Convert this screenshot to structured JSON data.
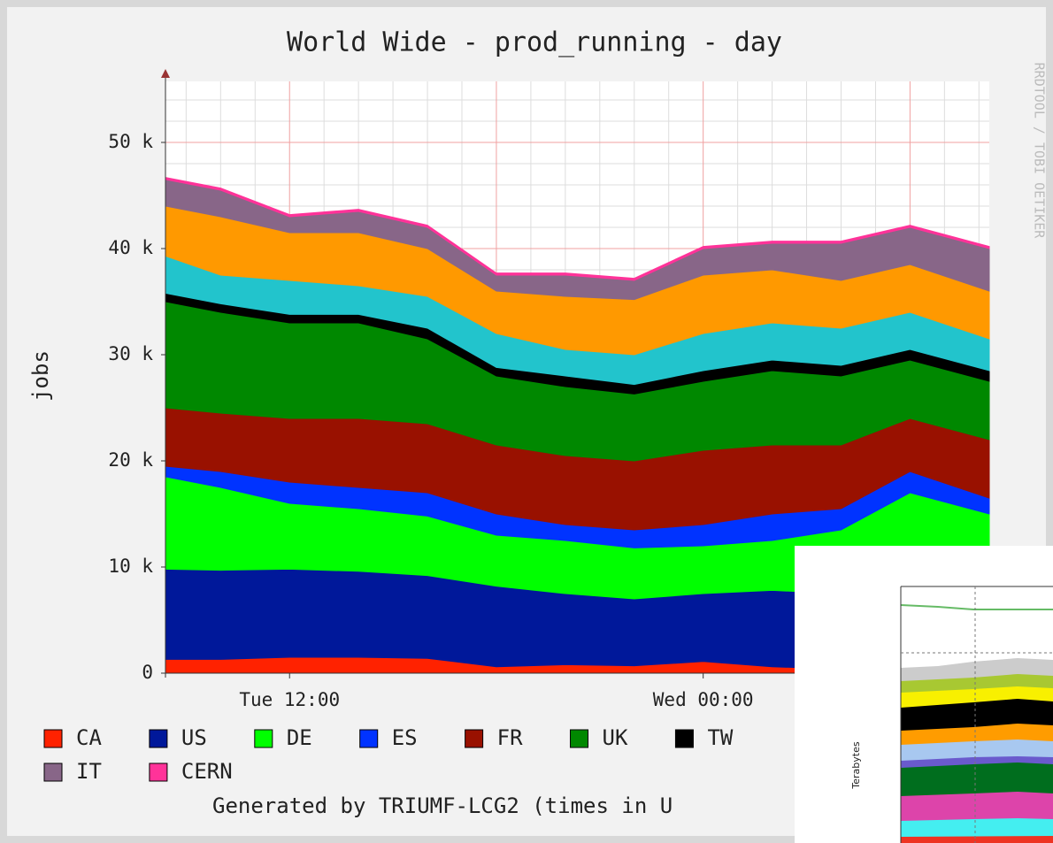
{
  "chart_data": {
    "type": "stacked_area",
    "title": "World Wide - prod_running - day",
    "y_label": "jobs",
    "side_note": "RRDTOOL / TOBI OETIKER",
    "footer": "Generated by TRIUMF-LCG2 (times in U",
    "x": [
      8.4,
      10,
      12,
      14,
      16,
      18,
      20,
      22,
      24,
      26,
      28,
      30,
      32.3
    ],
    "xlim": [
      8.4,
      32.3
    ],
    "xticks": [
      {
        "value": 12,
        "label": "Tue 12:00"
      },
      {
        "value": 24,
        "label": "Wed 00:00"
      }
    ],
    "x_major_grid": [
      12,
      18,
      24,
      30
    ],
    "x_minor_grid": [
      9,
      10,
      11,
      13,
      14,
      15,
      16,
      17,
      19,
      20,
      21,
      22,
      23,
      25,
      26,
      27,
      28,
      29,
      31,
      32
    ],
    "ylim": [
      0,
      55750
    ],
    "yticks": [
      {
        "value": 0,
        "label": "0"
      },
      {
        "value": 10000,
        "label": "10 k"
      },
      {
        "value": 20000,
        "label": "20 k"
      },
      {
        "value": 30000,
        "label": "30 k"
      },
      {
        "value": 40000,
        "label": "40 k"
      },
      {
        "value": 50000,
        "label": "50 k"
      }
    ],
    "y_minor_grid": [
      2000,
      4000,
      6000,
      8000,
      12000,
      14000,
      16000,
      18000,
      22000,
      24000,
      26000,
      28000,
      32000,
      34000,
      36000,
      38000,
      42000,
      44000,
      46000,
      48000,
      52000,
      54000
    ],
    "grid": true,
    "series": [
      {
        "name": "CA",
        "color": "#ff2200",
        "values": [
          1300,
          1300,
          1500,
          1500,
          1400,
          600,
          800,
          700,
          1100,
          600,
          400,
          300,
          300
        ]
      },
      {
        "name": "US",
        "color": "#00189a",
        "values": [
          8500,
          8400,
          8300,
          8100,
          7800,
          7600,
          6700,
          6300,
          6400,
          7200,
          7100,
          7300,
          7200
        ]
      },
      {
        "name": "DE",
        "color": "#00ff00",
        "values": [
          8700,
          7800,
          6200,
          5900,
          5600,
          4800,
          5000,
          4800,
          4500,
          4700,
          6000,
          9400,
          7500
        ]
      },
      {
        "name": "ES",
        "color": "#0033ff",
        "values": [
          1000,
          1500,
          2000,
          2000,
          2200,
          2000,
          1500,
          1700,
          2000,
          2500,
          2000,
          2000,
          1500
        ]
      },
      {
        "name": "FR",
        "color": "#991100",
        "values": [
          5500,
          5500,
          6000,
          6500,
          6500,
          6500,
          6500,
          6500,
          7000,
          6500,
          6000,
          5000,
          5500
        ]
      },
      {
        "name": "UK",
        "color": "#008800",
        "values": [
          10000,
          9500,
          9000,
          9000,
          8000,
          6500,
          6500,
          6300,
          6500,
          7000,
          6500,
          5500,
          5500
        ]
      },
      {
        "name": "TW",
        "color": "#000000",
        "values": [
          800,
          800,
          800,
          800,
          1000,
          800,
          1000,
          900,
          1000,
          1000,
          1000,
          1000,
          1000
        ]
      },
      {
        "color": "#22c4cc",
        "values": [
          3500,
          2700,
          3200,
          2700,
          3000,
          3200,
          2500,
          2800,
          3500,
          3500,
          3500,
          3500,
          3000
        ]
      },
      {
        "color": "#ff9900",
        "values": [
          4700,
          5500,
          4500,
          5000,
          4500,
          4000,
          5000,
          5200,
          5500,
          5000,
          4500,
          4500,
          4500
        ]
      },
      {
        "name": "IT",
        "color": "#886688",
        "values": [
          2500,
          2500,
          1500,
          2000,
          2000,
          1500,
          2000,
          1800,
          2500,
          2500,
          3500,
          3500,
          4000
        ]
      },
      {
        "name": "CERN",
        "color": "#ff3399",
        "values": [
          200,
          200,
          200,
          200,
          200,
          200,
          200,
          200,
          200,
          200,
          200,
          200,
          200
        ]
      }
    ],
    "inset": {
      "y_label": "Terabytes"
    }
  }
}
